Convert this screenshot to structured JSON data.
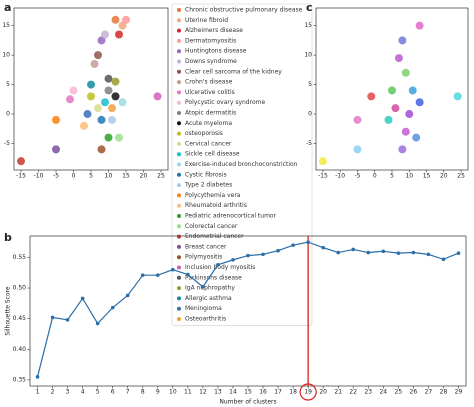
{
  "chart_data": [
    {
      "type": "scatter",
      "panel": "a",
      "xlim": [
        -17,
        27
      ],
      "ylim": [
        -9.5,
        18
      ],
      "xticks": [
        -15,
        -10,
        -5,
        0,
        5,
        10,
        15,
        20,
        25
      ],
      "yticks": [
        -5,
        0,
        5,
        10,
        15
      ],
      "series": [
        {
          "name": "Chronic obstructive pulmonary disease",
          "color": "#e8743b",
          "x": [
            12
          ],
          "y": [
            16
          ]
        },
        {
          "name": "Uterine fibroid",
          "color": "#f4a582",
          "x": [
            14
          ],
          "y": [
            15
          ]
        },
        {
          "name": "Alzheimers disease",
          "color": "#d62728",
          "x": [
            13
          ],
          "y": [
            13.5
          ]
        },
        {
          "name": "Dermatomyositis",
          "color": "#ff9896",
          "x": [
            15
          ],
          "y": [
            16
          ]
        },
        {
          "name": "Huntingtons disease",
          "color": "#9467bd",
          "x": [
            8
          ],
          "y": [
            12.5
          ]
        },
        {
          "name": "Downs syndrome",
          "color": "#c5b0d5",
          "x": [
            9
          ],
          "y": [
            13.5
          ]
        },
        {
          "name": "Clear cell sarcoma of the kidney",
          "color": "#8c564b",
          "x": [
            7
          ],
          "y": [
            10
          ]
        },
        {
          "name": "Crohn's disease",
          "color": "#c49c94",
          "x": [
            6
          ],
          "y": [
            8.5
          ]
        },
        {
          "name": "Ulcerative colitis",
          "color": "#e377c2",
          "x": [
            -1
          ],
          "y": [
            2.5
          ]
        },
        {
          "name": "Polycystic ovary syndrome",
          "color": "#f7b6d2",
          "x": [
            0
          ],
          "y": [
            4
          ]
        },
        {
          "name": "Atopic dermatitis",
          "color": "#7f7f7f",
          "x": [
            10
          ],
          "y": [
            4
          ]
        },
        {
          "name": "Acute myeloma",
          "color": "#111111",
          "x": [
            12
          ],
          "y": [
            3
          ]
        },
        {
          "name": "osteoporosis",
          "color": "#bcbd22",
          "x": [
            5
          ],
          "y": [
            3
          ]
        },
        {
          "name": "Cervical cancer",
          "color": "#dbdb8d",
          "x": [
            7
          ],
          "y": [
            1
          ]
        },
        {
          "name": "Sickle cell disease",
          "color": "#17becf",
          "x": [
            9
          ],
          "y": [
            2
          ]
        },
        {
          "name": "Exercise-induced bronchoconstriction",
          "color": "#9edae5",
          "x": [
            14
          ],
          "y": [
            2
          ]
        },
        {
          "name": "Cystic fibrosis",
          "color": "#1f77b4",
          "x": [
            8
          ],
          "y": [
            -1
          ]
        },
        {
          "name": "Type 2 diabetes",
          "color": "#aec7e8",
          "x": [
            11
          ],
          "y": [
            -1
          ]
        },
        {
          "name": "Polycythemia vera",
          "color": "#ff7f0e",
          "x": [
            -5
          ],
          "y": [
            -1
          ]
        },
        {
          "name": "Rheumatoid arthritis",
          "color": "#ffbb78",
          "x": [
            3
          ],
          "y": [
            -2
          ]
        },
        {
          "name": "Pediatric adrenocortical tumor",
          "color": "#2ca02c",
          "x": [
            10
          ],
          "y": [
            -4
          ]
        },
        {
          "name": "Colorectal cancer",
          "color": "#98df8a",
          "x": [
            13
          ],
          "y": [
            -4
          ]
        },
        {
          "name": "Endometrial cancer",
          "color": "#c0392b",
          "x": [
            -15
          ],
          "y": [
            -8
          ]
        },
        {
          "name": "Breast cancer",
          "color": "#7b4fa0",
          "x": [
            -5
          ],
          "y": [
            -6
          ]
        },
        {
          "name": "Polymyositis",
          "color": "#a0522d",
          "x": [
            8
          ],
          "y": [
            -6
          ]
        },
        {
          "name": "Inclusion body myositis",
          "color": "#d35fb7",
          "x": [
            24
          ],
          "y": [
            3
          ]
        },
        {
          "name": "Parkinsons disease",
          "color": "#555555",
          "x": [
            10
          ],
          "y": [
            6
          ]
        },
        {
          "name": "IgA nephropathy",
          "color": "#9a9a2a",
          "x": [
            12
          ],
          "y": [
            5.5
          ]
        },
        {
          "name": "Allergic asthma",
          "color": "#138d9c",
          "x": [
            5
          ],
          "y": [
            5
          ]
        },
        {
          "name": "Meningioma",
          "color": "#3b6fb6",
          "x": [
            4
          ],
          "y": [
            0
          ]
        },
        {
          "name": "Osteoarthritis",
          "color": "#f0a040",
          "x": [
            11
          ],
          "y": [
            1
          ]
        }
      ]
    },
    {
      "type": "scatter",
      "panel": "c",
      "xlim": [
        -17,
        27
      ],
      "ylim": [
        -9.5,
        18
      ],
      "xticks": [
        -15,
        -10,
        -5,
        0,
        5,
        10,
        15,
        20,
        25
      ],
      "yticks": [
        -5,
        0,
        5,
        10,
        15
      ],
      "series": [
        {
          "color": "#f5e642",
          "x": [
            -15
          ],
          "y": [
            -8
          ]
        },
        {
          "color": "#4fd6e0",
          "x": [
            24
          ],
          "y": [
            3
          ]
        },
        {
          "color": "#e066c8",
          "x": [
            13
          ],
          "y": [
            15
          ]
        },
        {
          "color": "#6b7bd8",
          "x": [
            8
          ],
          "y": [
            12.5
          ]
        },
        {
          "color": "#b75ad1",
          "x": [
            7
          ],
          "y": [
            9.5
          ]
        },
        {
          "color": "#e04848",
          "x": [
            -1
          ],
          "y": [
            3
          ]
        },
        {
          "color": "#57c85a",
          "x": [
            5
          ],
          "y": [
            4
          ]
        },
        {
          "color": "#3aa0e0",
          "x": [
            11
          ],
          "y": [
            4
          ]
        },
        {
          "color": "#d24b9e",
          "x": [
            6
          ],
          "y": [
            1
          ]
        },
        {
          "color": "#a04ad8",
          "x": [
            10
          ],
          "y": [
            0
          ]
        },
        {
          "color": "#4060e0",
          "x": [
            13
          ],
          "y": [
            2
          ]
        },
        {
          "color": "#2bc9c0",
          "x": [
            4
          ],
          "y": [
            -1
          ]
        },
        {
          "color": "#c85ad0",
          "x": [
            9
          ],
          "y": [
            -3
          ]
        },
        {
          "color": "#5890e0",
          "x": [
            12
          ],
          "y": [
            -4
          ]
        },
        {
          "color": "#87d0f0",
          "x": [
            -5
          ],
          "y": [
            -6
          ]
        },
        {
          "color": "#9a6ee0",
          "x": [
            8
          ],
          "y": [
            -6
          ]
        },
        {
          "color": "#e07ad0",
          "x": [
            -5
          ],
          "y": [
            -1
          ]
        },
        {
          "color": "#7bd06a",
          "x": [
            9
          ],
          "y": [
            7
          ]
        }
      ]
    },
    {
      "type": "line",
      "panel": "b",
      "xlabel": "Number of clusters",
      "ylabel": "Silhouette Score",
      "x": [
        1,
        2,
        3,
        4,
        5,
        6,
        7,
        8,
        9,
        10,
        11,
        12,
        13,
        14,
        15,
        16,
        17,
        18,
        19,
        20,
        21,
        22,
        23,
        24,
        25,
        26,
        27,
        28,
        29
      ],
      "series": [
        {
          "color": "#2b6ea8",
          "values": [
            0.355,
            0.452,
            0.448,
            0.483,
            0.442,
            0.468,
            0.488,
            0.521,
            0.521,
            0.53,
            0.522,
            0.502,
            0.538,
            0.546,
            0.553,
            0.555,
            0.561,
            0.57,
            0.575,
            0.566,
            0.558,
            0.563,
            0.558,
            0.56,
            0.557,
            0.558,
            0.555,
            0.547,
            0.557
          ]
        }
      ],
      "xlim": [
        0.5,
        29.5
      ],
      "ylim": [
        0.34,
        0.585
      ],
      "xticks": [
        1,
        2,
        3,
        4,
        5,
        6,
        7,
        8,
        9,
        10,
        11,
        12,
        13,
        14,
        15,
        16,
        17,
        18,
        19,
        20,
        21,
        22,
        23,
        24,
        25,
        26,
        27,
        28,
        29
      ],
      "yticks": [
        0.35,
        {
          "value": 0.4,
          "label": "0.40"
        },
        0.45,
        {
          "value": 0.5,
          "label": "0.50"
        },
        0.55
      ],
      "highlight_x": 19,
      "highlight_color": "#d62020"
    }
  ]
}
